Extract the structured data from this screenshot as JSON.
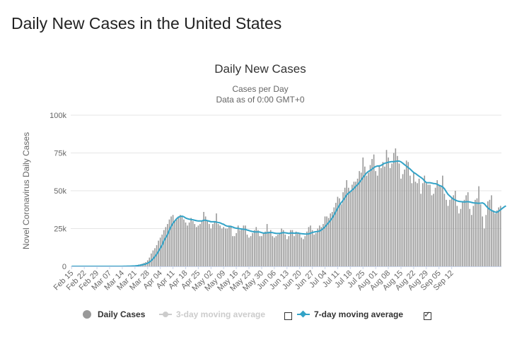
{
  "page": {
    "title": "Daily New Cases in the United States"
  },
  "colors": {
    "bar": "#999999",
    "avg7": "#33A3C7",
    "avg3_disabled": "#cccccc",
    "grid": "#e6e6e6",
    "text": "#333333"
  },
  "legend": {
    "daily": "Daily Cases",
    "avg3": "3-day moving average",
    "avg7": "7-day moving average",
    "avg3_checked": false,
    "avg7_checked": true
  },
  "chart_data": {
    "type": "bar",
    "title": "Daily New Cases",
    "subtitle_lines": [
      "Cases per Day",
      "Data as of 0:00 GMT+0"
    ],
    "ylabel": "Novel Coronavirus Daily Cases",
    "xlabel": "",
    "ylim": [
      0,
      100000
    ],
    "y_ticks": [
      0,
      25000,
      50000,
      75000,
      100000
    ],
    "y_tick_labels": [
      "0",
      "25k",
      "50k",
      "75k",
      "100k"
    ],
    "x_tick_labels": [
      "Feb 15",
      "Feb 22",
      "Feb 29",
      "Mar 07",
      "Mar 14",
      "Mar 21",
      "Mar 28",
      "Apr 04",
      "Apr 11",
      "Apr 18",
      "Apr 25",
      "May 02",
      "May 09",
      "May 16",
      "May 23",
      "May 30",
      "Jun 06",
      "Jun 13",
      "Jun 20",
      "Jun 27",
      "Jul 04",
      "Jul 11",
      "Jul 18",
      "Jul 25",
      "Aug 01",
      "Aug 08",
      "Aug 15",
      "Aug 22",
      "Aug 29",
      "Sep 05",
      "Sep 12"
    ],
    "start_date": "Feb 15",
    "grid": true,
    "legend_position": "bottom",
    "series": [
      {
        "name": "Daily Cases",
        "type": "bar",
        "values": [
          0,
          0,
          0,
          0,
          0,
          0,
          0,
          0,
          0,
          0,
          0,
          0,
          0,
          0,
          0,
          0,
          0,
          0,
          0,
          0,
          0,
          0,
          0,
          10,
          10,
          20,
          20,
          50,
          80,
          100,
          150,
          200,
          300,
          350,
          450,
          550,
          800,
          1200,
          1400,
          1800,
          2300,
          2800,
          4000,
          5800,
          8500,
          10500,
          12000,
          14000,
          17000,
          19000,
          21000,
          24000,
          26000,
          28000,
          31000,
          33000,
          34000,
          30000,
          31000,
          33000,
          34000,
          33000,
          31000,
          29000,
          27000,
          29000,
          32000,
          30000,
          28000,
          26000,
          27000,
          28000,
          30000,
          36000,
          33000,
          30000,
          28000,
          25000,
          28000,
          30000,
          35000,
          28000,
          27000,
          25000,
          26000,
          25000,
          25000,
          27000,
          27000,
          20000,
          20000,
          22000,
          27000,
          24000,
          25000,
          27000,
          27000,
          21000,
          19000,
          20000,
          22000,
          24000,
          26000,
          24000,
          20000,
          20000,
          22000,
          23000,
          28000,
          23000,
          24000,
          20000,
          19000,
          20000,
          21000,
          22000,
          25000,
          24000,
          21000,
          18000,
          20000,
          24000,
          24000,
          20000,
          23000,
          22000,
          22000,
          19000,
          18000,
          20000,
          23000,
          26000,
          27000,
          24000,
          21000,
          22000,
          25000,
          27000,
          26000,
          28000,
          33000,
          33000,
          32000,
          35000,
          36000,
          39000,
          42000,
          46000,
          45000,
          41000,
          49000,
          52000,
          57000,
          52000,
          49000,
          54000,
          56000,
          56000,
          58000,
          63000,
          62000,
          72000,
          66000,
          60000,
          62000,
          67000,
          71000,
          74000,
          63000,
          60000,
          67000,
          65000,
          69000,
          66000,
          77000,
          72000,
          65000,
          68000,
          75000,
          78000,
          73000,
          68000,
          58000,
          61000,
          64000,
          70000,
          69000,
          60000,
          55000,
          62000,
          56000,
          55000,
          58000,
          48000,
          55000,
          60000,
          55000,
          54000,
          54000,
          47000,
          48000,
          52000,
          57000,
          54000,
          53000,
          60000,
          48000,
          44000,
          40000,
          44000,
          45000,
          47000,
          50000,
          40000,
          35000,
          38000,
          43000,
          44000,
          47000,
          49000,
          38000,
          34000,
          40000,
          44000,
          45000,
          53000,
          41000,
          33000,
          25000,
          34000,
          43000,
          44000,
          47000,
          37000,
          35000,
          37000,
          39000,
          40000
        ]
      },
      {
        "name": "7-day moving average",
        "type": "line",
        "values": [
          0,
          0,
          0,
          0,
          0,
          0,
          0,
          0,
          0,
          0,
          0,
          0,
          0,
          0,
          0,
          0,
          0,
          0,
          0,
          0,
          0,
          0,
          0,
          1,
          3,
          6,
          9,
          16,
          27,
          41,
          61,
          87,
          130,
          173,
          231,
          292,
          392,
          536,
          750,
          1000,
          1300,
          1600,
          2100,
          2800,
          3800,
          5000,
          6400,
          8000,
          10000,
          12000,
          14000,
          17000,
          19000,
          21000,
          24000,
          26500,
          28500,
          30000,
          31500,
          32500,
          33000,
          33200,
          32800,
          32000,
          31500,
          31200,
          31000,
          30800,
          30500,
          30200,
          30000,
          30000,
          30000,
          30500,
          30500,
          30200,
          29900,
          29500,
          29500,
          29500,
          29300,
          29000,
          28800,
          28200,
          27800,
          27000,
          26600,
          26500,
          26300,
          26000,
          25500,
          25200,
          25200,
          24800,
          24700,
          24500,
          24500,
          24000,
          23700,
          23300,
          23000,
          22800,
          22800,
          22800,
          22700,
          22300,
          22000,
          22000,
          22200,
          22300,
          22400,
          22300,
          22000,
          21800,
          21800,
          21800,
          22100,
          22300,
          22200,
          22000,
          21800,
          22000,
          22100,
          21900,
          22000,
          22100,
          21800,
          21600,
          21500,
          21400,
          21400,
          21500,
          21900,
          22400,
          22700,
          22900,
          23100,
          23300,
          24100,
          25000,
          26100,
          27500,
          28900,
          30400,
          32000,
          34000,
          36200,
          38500,
          40500,
          42200,
          43700,
          45400,
          47300,
          48400,
          49400,
          50500,
          51500,
          52900,
          54000,
          55500,
          57100,
          58800,
          60300,
          61800,
          62800,
          63400,
          64300,
          65300,
          66000,
          66400,
          66300,
          66800,
          67500,
          68200,
          68500,
          68900,
          69100,
          69300,
          69200,
          69500,
          69600,
          69600,
          69100,
          68200,
          67200,
          66300,
          65300,
          64400,
          63200,
          62100,
          61400,
          60500,
          59600,
          58800,
          57900,
          56500,
          55400,
          55300,
          55300,
          55100,
          54800,
          54700,
          54300,
          53600,
          53200,
          52600,
          51300,
          49400,
          47600,
          46500,
          45400,
          44400,
          43900,
          43300,
          43000,
          42800,
          42700,
          42600,
          42700,
          42800,
          42600,
          42300,
          42000,
          41900,
          41800,
          41700,
          41800,
          42000,
          41400,
          40000,
          38700,
          37700,
          37000,
          36400,
          35900,
          35700,
          36500,
          37400,
          38400,
          39300,
          40000
        ]
      }
    ]
  }
}
